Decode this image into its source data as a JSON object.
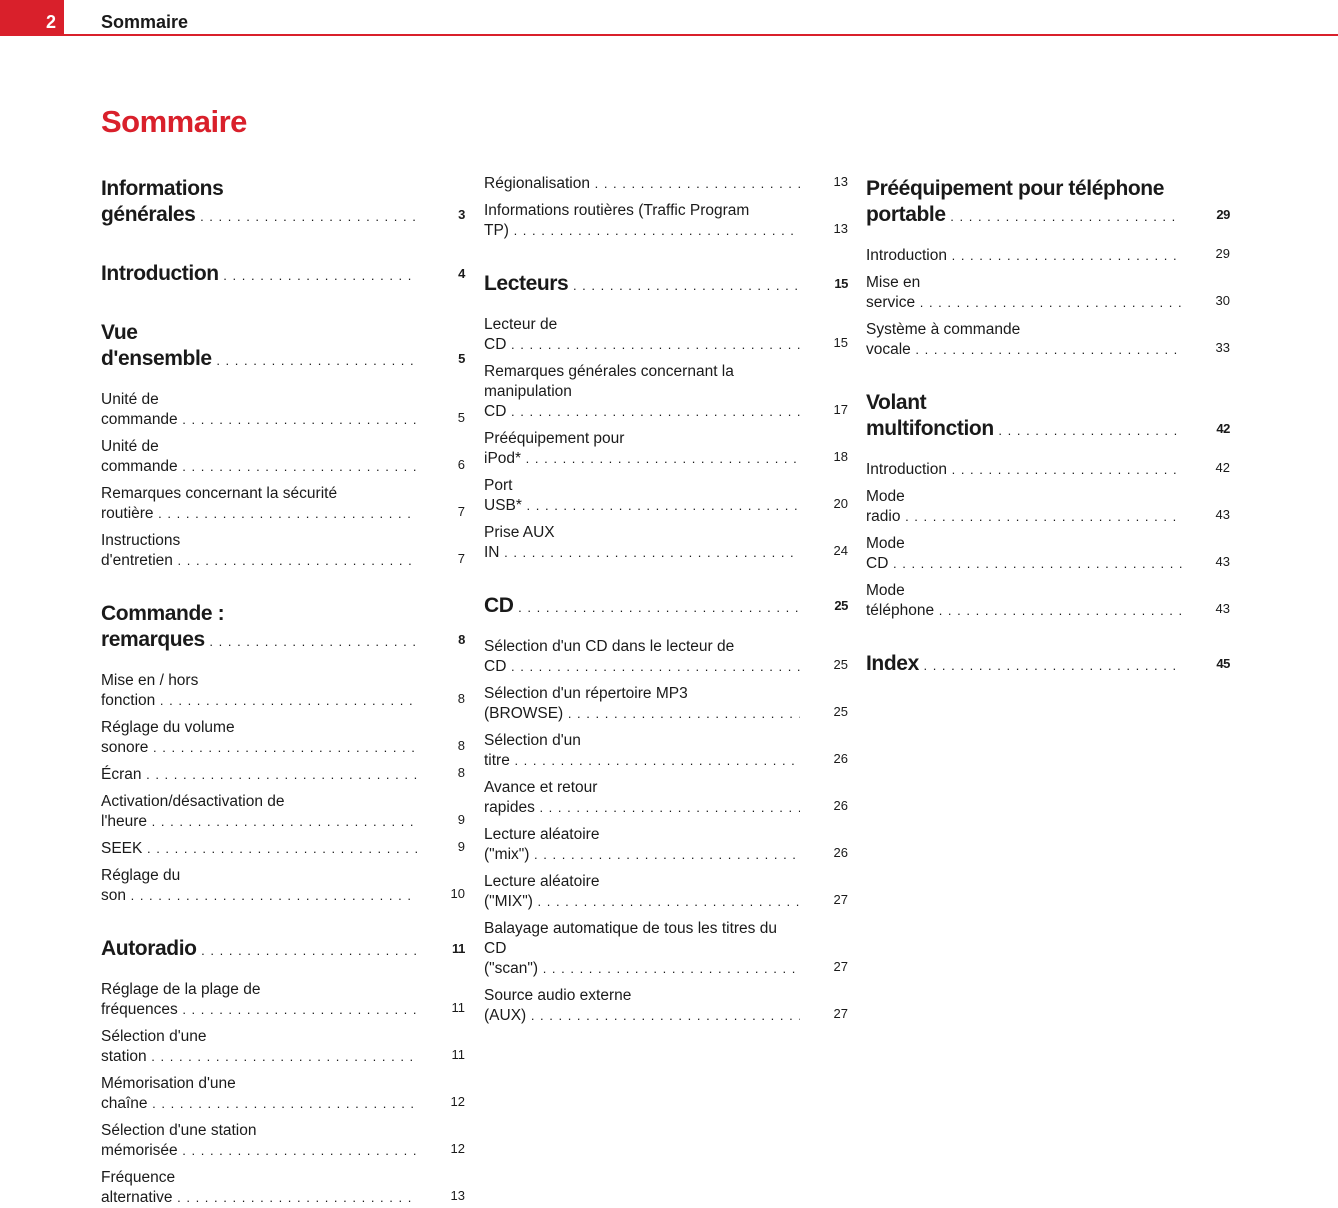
{
  "header": {
    "page_number": "2",
    "section": "Sommaire"
  },
  "title": "Sommaire",
  "accent_color": "#d9202b",
  "columns": [
    [
      {
        "type": "head",
        "label": "Informations générales",
        "page": "3"
      },
      {
        "type": "head",
        "label": "Introduction",
        "page": "4"
      },
      {
        "type": "head",
        "label": "Vue d'ensemble",
        "page": "5"
      },
      {
        "type": "item",
        "label": "Unité de commande",
        "page": "5"
      },
      {
        "type": "item",
        "label": "Unité de commande",
        "page": "6"
      },
      {
        "type": "item",
        "label": "Remarques concernant la sécurité routière",
        "page": "7"
      },
      {
        "type": "item",
        "label": "Instructions d'entretien",
        "page": "7"
      },
      {
        "type": "head",
        "label": "Commande : remarques",
        "page": "8"
      },
      {
        "type": "item",
        "label": "Mise en / hors fonction",
        "page": "8"
      },
      {
        "type": "item",
        "label": "Réglage du volume sonore",
        "page": "8"
      },
      {
        "type": "item",
        "label": "Écran",
        "page": "8"
      },
      {
        "type": "item",
        "label": "Activation/désactivation de l'heure",
        "page": "9"
      },
      {
        "type": "item",
        "label": "SEEK",
        "page": "9"
      },
      {
        "type": "item",
        "label": "Réglage du son",
        "page": "10"
      },
      {
        "type": "head",
        "label": "Autoradio",
        "page": "11"
      },
      {
        "type": "item",
        "label": "Réglage de la plage de fréquences",
        "page": "11"
      },
      {
        "type": "item",
        "label": "Sélection d'une station",
        "page": "11"
      },
      {
        "type": "item",
        "label": "Mémorisation d'une chaîne",
        "page": "12"
      },
      {
        "type": "item",
        "label": "Sélection d'une station mémorisée",
        "page": "12"
      },
      {
        "type": "item",
        "label": "Fréquence alternative",
        "page": "13"
      }
    ],
    [
      {
        "type": "item",
        "label": "Régionalisation",
        "page": "13"
      },
      {
        "type": "item",
        "label": "Informations routières (Traffic Program TP)",
        "page": "13"
      },
      {
        "type": "head",
        "label": "Lecteurs",
        "page": "15"
      },
      {
        "type": "item",
        "label": "Lecteur de CD",
        "page": "15"
      },
      {
        "type": "item",
        "label": "Remarques générales concernant la manipulation CD",
        "page": "17"
      },
      {
        "type": "item",
        "label": "Prééquipement pour iPod*",
        "page": "18"
      },
      {
        "type": "item",
        "label": "Port USB*",
        "page": "20"
      },
      {
        "type": "item",
        "label": "Prise AUX IN",
        "page": "24"
      },
      {
        "type": "head",
        "label": "CD",
        "page": "25"
      },
      {
        "type": "item",
        "label": "Sélection d'un CD dans le lecteur de CD",
        "page": "25"
      },
      {
        "type": "item",
        "label": "Sélection d'un répertoire MP3 (BROWSE)",
        "page": "25"
      },
      {
        "type": "item",
        "label": "Sélection d'un titre",
        "page": "26"
      },
      {
        "type": "item",
        "label": "Avance et retour rapides",
        "page": "26"
      },
      {
        "type": "item",
        "label": "Lecture aléatoire (\"mix\")",
        "page": "26"
      },
      {
        "type": "item",
        "label": "Lecture aléatoire (\"MIX\")",
        "page": "27"
      },
      {
        "type": "item",
        "label": "Balayage automatique de tous les titres du CD (\"scan\")",
        "page": "27"
      },
      {
        "type": "item",
        "label": "Source audio externe (AUX)",
        "page": "27"
      }
    ],
    [
      {
        "type": "head",
        "label": "Prééquipement pour téléphone portable",
        "page": "29"
      },
      {
        "type": "item",
        "label": "Introduction",
        "page": "29"
      },
      {
        "type": "item",
        "label": "Mise en service",
        "page": "30"
      },
      {
        "type": "item",
        "label": "Système à commande vocale",
        "page": "33"
      },
      {
        "type": "head",
        "label": "Volant multifonction",
        "page": "42"
      },
      {
        "type": "item",
        "label": "Introduction",
        "page": "42"
      },
      {
        "type": "item",
        "label": "Mode radio",
        "page": "43"
      },
      {
        "type": "item",
        "label": "Mode CD",
        "page": "43"
      },
      {
        "type": "item",
        "label": "Mode téléphone",
        "page": "43"
      },
      {
        "type": "head",
        "label": "Index",
        "page": "45"
      }
    ]
  ]
}
